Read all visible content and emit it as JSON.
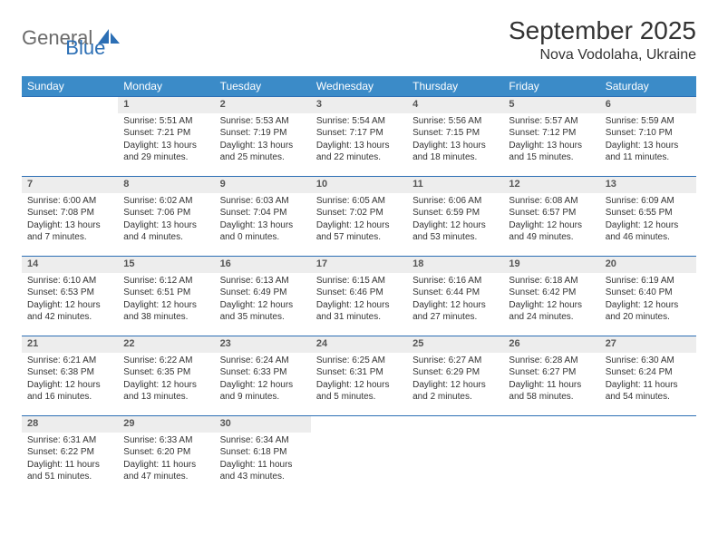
{
  "logo": {
    "part1": "General",
    "part2": "Blue"
  },
  "title": "September 2025",
  "location": "Nova Vodolaha, Ukraine",
  "colors": {
    "header_bg": "#3b8bc8",
    "header_text": "#ffffff",
    "daynum_bg": "#ededed",
    "border_top": "#2c6fb5",
    "logo_gray": "#6b6b6b",
    "logo_blue": "#2c6fb5"
  },
  "weekdays": [
    "Sunday",
    "Monday",
    "Tuesday",
    "Wednesday",
    "Thursday",
    "Friday",
    "Saturday"
  ],
  "weeks": [
    {
      "nums": [
        "",
        "1",
        "2",
        "3",
        "4",
        "5",
        "6"
      ],
      "cells": [
        null,
        {
          "sunrise": "Sunrise: 5:51 AM",
          "sunset": "Sunset: 7:21 PM",
          "day1": "Daylight: 13 hours",
          "day2": "and 29 minutes."
        },
        {
          "sunrise": "Sunrise: 5:53 AM",
          "sunset": "Sunset: 7:19 PM",
          "day1": "Daylight: 13 hours",
          "day2": "and 25 minutes."
        },
        {
          "sunrise": "Sunrise: 5:54 AM",
          "sunset": "Sunset: 7:17 PM",
          "day1": "Daylight: 13 hours",
          "day2": "and 22 minutes."
        },
        {
          "sunrise": "Sunrise: 5:56 AM",
          "sunset": "Sunset: 7:15 PM",
          "day1": "Daylight: 13 hours",
          "day2": "and 18 minutes."
        },
        {
          "sunrise": "Sunrise: 5:57 AM",
          "sunset": "Sunset: 7:12 PM",
          "day1": "Daylight: 13 hours",
          "day2": "and 15 minutes."
        },
        {
          "sunrise": "Sunrise: 5:59 AM",
          "sunset": "Sunset: 7:10 PM",
          "day1": "Daylight: 13 hours",
          "day2": "and 11 minutes."
        }
      ]
    },
    {
      "nums": [
        "7",
        "8",
        "9",
        "10",
        "11",
        "12",
        "13"
      ],
      "cells": [
        {
          "sunrise": "Sunrise: 6:00 AM",
          "sunset": "Sunset: 7:08 PM",
          "day1": "Daylight: 13 hours",
          "day2": "and 7 minutes."
        },
        {
          "sunrise": "Sunrise: 6:02 AM",
          "sunset": "Sunset: 7:06 PM",
          "day1": "Daylight: 13 hours",
          "day2": "and 4 minutes."
        },
        {
          "sunrise": "Sunrise: 6:03 AM",
          "sunset": "Sunset: 7:04 PM",
          "day1": "Daylight: 13 hours",
          "day2": "and 0 minutes."
        },
        {
          "sunrise": "Sunrise: 6:05 AM",
          "sunset": "Sunset: 7:02 PM",
          "day1": "Daylight: 12 hours",
          "day2": "and 57 minutes."
        },
        {
          "sunrise": "Sunrise: 6:06 AM",
          "sunset": "Sunset: 6:59 PM",
          "day1": "Daylight: 12 hours",
          "day2": "and 53 minutes."
        },
        {
          "sunrise": "Sunrise: 6:08 AM",
          "sunset": "Sunset: 6:57 PM",
          "day1": "Daylight: 12 hours",
          "day2": "and 49 minutes."
        },
        {
          "sunrise": "Sunrise: 6:09 AM",
          "sunset": "Sunset: 6:55 PM",
          "day1": "Daylight: 12 hours",
          "day2": "and 46 minutes."
        }
      ]
    },
    {
      "nums": [
        "14",
        "15",
        "16",
        "17",
        "18",
        "19",
        "20"
      ],
      "cells": [
        {
          "sunrise": "Sunrise: 6:10 AM",
          "sunset": "Sunset: 6:53 PM",
          "day1": "Daylight: 12 hours",
          "day2": "and 42 minutes."
        },
        {
          "sunrise": "Sunrise: 6:12 AM",
          "sunset": "Sunset: 6:51 PM",
          "day1": "Daylight: 12 hours",
          "day2": "and 38 minutes."
        },
        {
          "sunrise": "Sunrise: 6:13 AM",
          "sunset": "Sunset: 6:49 PM",
          "day1": "Daylight: 12 hours",
          "day2": "and 35 minutes."
        },
        {
          "sunrise": "Sunrise: 6:15 AM",
          "sunset": "Sunset: 6:46 PM",
          "day1": "Daylight: 12 hours",
          "day2": "and 31 minutes."
        },
        {
          "sunrise": "Sunrise: 6:16 AM",
          "sunset": "Sunset: 6:44 PM",
          "day1": "Daylight: 12 hours",
          "day2": "and 27 minutes."
        },
        {
          "sunrise": "Sunrise: 6:18 AM",
          "sunset": "Sunset: 6:42 PM",
          "day1": "Daylight: 12 hours",
          "day2": "and 24 minutes."
        },
        {
          "sunrise": "Sunrise: 6:19 AM",
          "sunset": "Sunset: 6:40 PM",
          "day1": "Daylight: 12 hours",
          "day2": "and 20 minutes."
        }
      ]
    },
    {
      "nums": [
        "21",
        "22",
        "23",
        "24",
        "25",
        "26",
        "27"
      ],
      "cells": [
        {
          "sunrise": "Sunrise: 6:21 AM",
          "sunset": "Sunset: 6:38 PM",
          "day1": "Daylight: 12 hours",
          "day2": "and 16 minutes."
        },
        {
          "sunrise": "Sunrise: 6:22 AM",
          "sunset": "Sunset: 6:35 PM",
          "day1": "Daylight: 12 hours",
          "day2": "and 13 minutes."
        },
        {
          "sunrise": "Sunrise: 6:24 AM",
          "sunset": "Sunset: 6:33 PM",
          "day1": "Daylight: 12 hours",
          "day2": "and 9 minutes."
        },
        {
          "sunrise": "Sunrise: 6:25 AM",
          "sunset": "Sunset: 6:31 PM",
          "day1": "Daylight: 12 hours",
          "day2": "and 5 minutes."
        },
        {
          "sunrise": "Sunrise: 6:27 AM",
          "sunset": "Sunset: 6:29 PM",
          "day1": "Daylight: 12 hours",
          "day2": "and 2 minutes."
        },
        {
          "sunrise": "Sunrise: 6:28 AM",
          "sunset": "Sunset: 6:27 PM",
          "day1": "Daylight: 11 hours",
          "day2": "and 58 minutes."
        },
        {
          "sunrise": "Sunrise: 6:30 AM",
          "sunset": "Sunset: 6:24 PM",
          "day1": "Daylight: 11 hours",
          "day2": "and 54 minutes."
        }
      ]
    },
    {
      "nums": [
        "28",
        "29",
        "30",
        "",
        "",
        "",
        ""
      ],
      "cells": [
        {
          "sunrise": "Sunrise: 6:31 AM",
          "sunset": "Sunset: 6:22 PM",
          "day1": "Daylight: 11 hours",
          "day2": "and 51 minutes."
        },
        {
          "sunrise": "Sunrise: 6:33 AM",
          "sunset": "Sunset: 6:20 PM",
          "day1": "Daylight: 11 hours",
          "day2": "and 47 minutes."
        },
        {
          "sunrise": "Sunrise: 6:34 AM",
          "sunset": "Sunset: 6:18 PM",
          "day1": "Daylight: 11 hours",
          "day2": "and 43 minutes."
        },
        null,
        null,
        null,
        null
      ]
    }
  ]
}
